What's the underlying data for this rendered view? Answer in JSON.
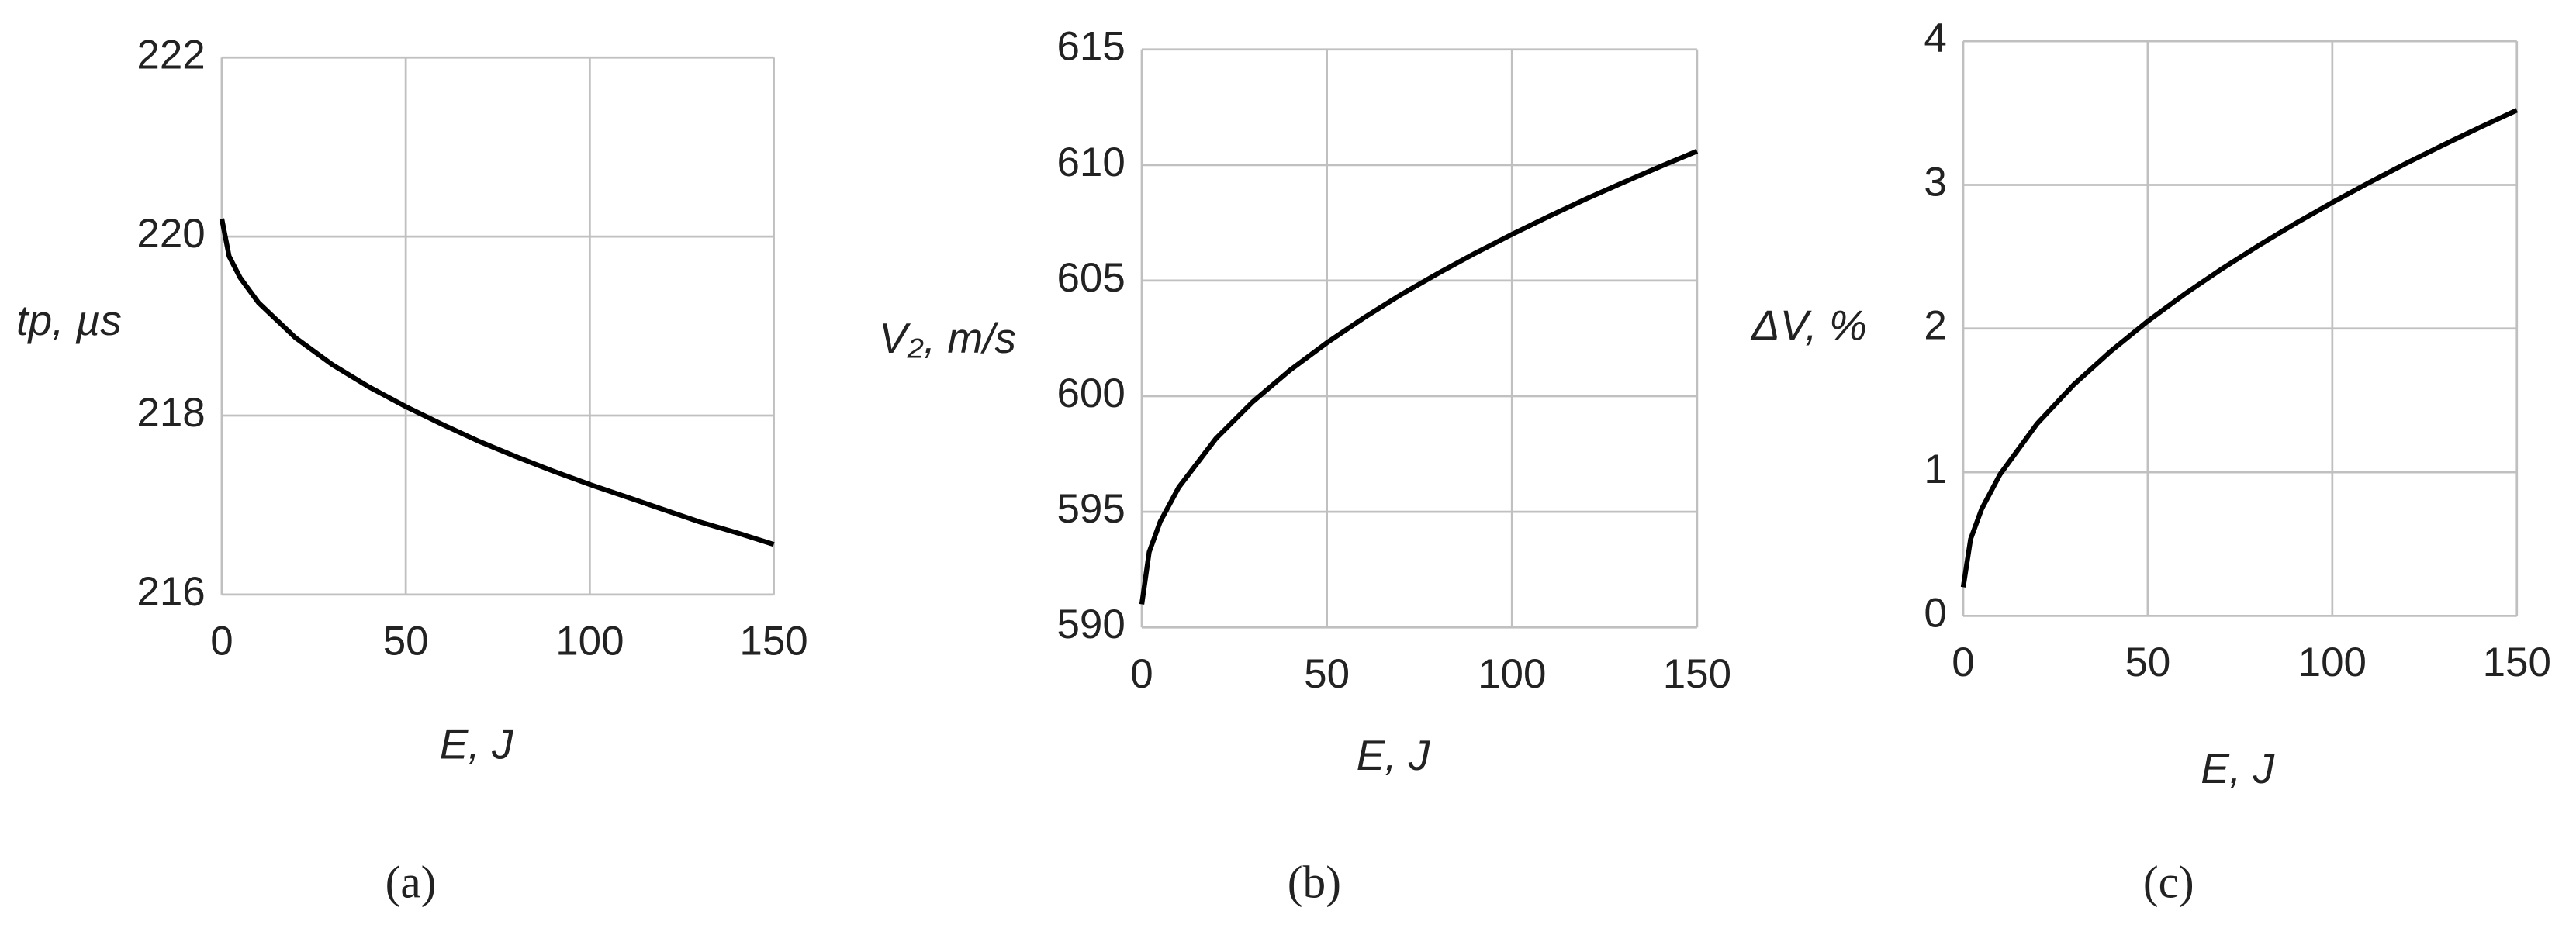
{
  "chart_data": [
    {
      "type": "line",
      "x": [
        0,
        2,
        5,
        10,
        20,
        30,
        40,
        50,
        60,
        70,
        80,
        90,
        100,
        110,
        120,
        130,
        140,
        150
      ],
      "values": [
        220.2,
        219.78,
        219.54,
        219.26,
        218.87,
        218.57,
        218.32,
        218.1,
        217.9,
        217.71,
        217.54,
        217.38,
        217.23,
        217.09,
        216.95,
        216.81,
        216.69,
        216.56
      ],
      "color": "#000000",
      "xlim": [
        0,
        150
      ],
      "xticks": [
        0,
        50,
        100,
        150
      ],
      "ylim": [
        216,
        222
      ],
      "yticks": [
        216,
        218,
        220,
        222
      ],
      "grid": true,
      "x_label": "E, J",
      "y_label": "tp, µs",
      "caption": "(a)"
    },
    {
      "type": "line",
      "x": [
        0,
        2,
        5,
        10,
        20,
        30,
        40,
        50,
        60,
        70,
        80,
        90,
        100,
        110,
        120,
        130,
        140,
        150
      ],
      "values": [
        591.0,
        593.26,
        594.58,
        596.06,
        598.16,
        599.76,
        601.12,
        602.31,
        603.39,
        604.39,
        605.31,
        606.18,
        607.0,
        607.78,
        608.53,
        609.24,
        609.93,
        610.6
      ],
      "color": "#000000",
      "xlim": [
        0,
        150
      ],
      "xticks": [
        0,
        50,
        100,
        150
      ],
      "ylim": [
        590,
        615
      ],
      "yticks": [
        590,
        595,
        600,
        605,
        610,
        615
      ],
      "grid": true,
      "x_label": "E, J",
      "y_label": "V₂, m/s",
      "caption": "(b)"
    },
    {
      "type": "line",
      "x": [
        0,
        2,
        5,
        10,
        20,
        30,
        40,
        50,
        60,
        70,
        80,
        90,
        100,
        110,
        120,
        130,
        140,
        150
      ],
      "values": [
        0.2,
        0.534,
        0.744,
        0.986,
        1.337,
        1.611,
        1.843,
        2.051,
        2.24,
        2.414,
        2.577,
        2.731,
        2.877,
        3.016,
        3.15,
        3.277,
        3.4,
        3.52
      ],
      "color": "#000000",
      "xlim": [
        0,
        150
      ],
      "xticks": [
        0,
        50,
        100,
        150
      ],
      "ylim": [
        0,
        4
      ],
      "yticks": [
        0,
        1,
        2,
        3,
        4
      ],
      "grid": true,
      "x_label": "E, J",
      "y_label": "ΔV, %",
      "caption": "(c)"
    }
  ]
}
